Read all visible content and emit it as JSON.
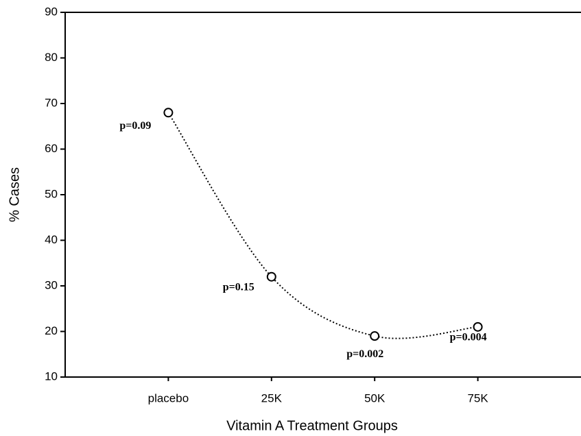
{
  "chart_data": {
    "type": "line",
    "xlabel": "Vitamin A Treatment Groups",
    "ylabel": "% Cases",
    "categories": [
      "placebo",
      "25K",
      "50K",
      "75K"
    ],
    "values": [
      68,
      32,
      19,
      21
    ],
    "annotations": [
      "p=0.09",
      "p=0.15",
      "p=0.002",
      "p=0.004"
    ],
    "color": "#000000",
    "ylim": [
      10,
      90
    ],
    "yticks": [
      10,
      20,
      30,
      40,
      50,
      60,
      70,
      80,
      90
    ],
    "grid": false
  }
}
